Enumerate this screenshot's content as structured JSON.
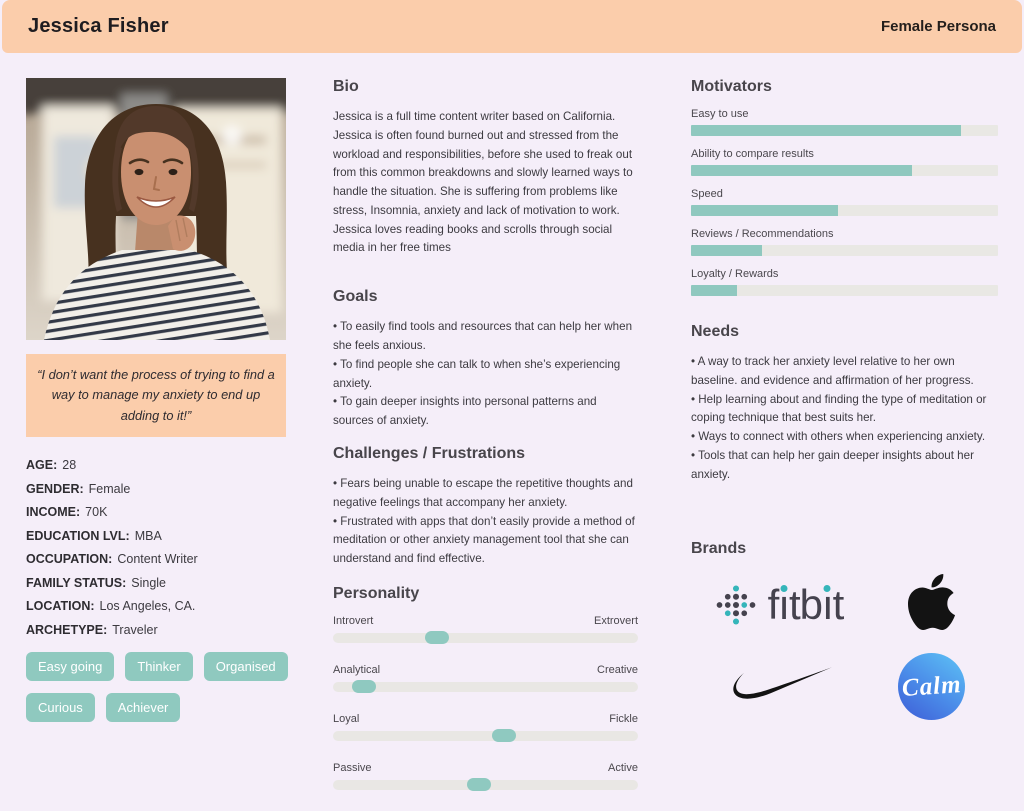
{
  "header": {
    "title": "Jessica Fisher",
    "persona_type": "Female Persona"
  },
  "profile": {
    "photo_label": "Smiling woman with long brown hair in striped shirt",
    "quote": "“I don’t want the process of trying to find a way to manage my anxiety to end up adding to it!”",
    "attributes": [
      {
        "label": "AGE:",
        "value": "28"
      },
      {
        "label": "GENDER:",
        "value": "Female"
      },
      {
        "label": "INCOME:",
        "value": "70K"
      },
      {
        "label": "EDUCATION LVL:",
        "value": "MBA"
      },
      {
        "label": "OCCUPATION:",
        "value": "Content Writer"
      },
      {
        "label": "FAMILY STATUS:",
        "value": "Single"
      },
      {
        "label": "LOCATION:",
        "value": "Los Angeles, CA."
      },
      {
        "label": "ARCHETYPE:",
        "value": "Traveler"
      }
    ],
    "traits": [
      "Easy going",
      "Thinker",
      "Organised",
      "Curious",
      "Achiever"
    ]
  },
  "bio": {
    "heading": "Bio",
    "text": "Jessica is a full time content writer based on California. Jessica is often found burned out and stressed from the workload and responsibilities, before she used to freak out from this common breakdowns and slowly learned ways to handle the situation. She is suffering from problems like stress, Insomnia, anxiety and lack of motivation to work. Jessica loves reading books and scrolls through social media in her free times"
  },
  "goals": {
    "heading": "Goals",
    "items": [
      "• To easily find tools and resources that can help her when she feels anxious.",
      "• To find people she can talk to when she’s experiencing anxiety.",
      "• To gain deeper insights into personal patterns and sources of anxiety."
    ]
  },
  "challenges": {
    "heading": "Challenges / Frustrations",
    "items": [
      "• Fears being unable to escape the repetitive thoughts and negative feelings that accompany her anxiety.",
      "• Frustrated with apps that don’t easily provide a method of meditation or other anxiety management tool that she can understand and find effective."
    ]
  },
  "personality": {
    "heading": "Personality",
    "sliders": [
      {
        "left": "Introvert",
        "right": "Extrovert",
        "value": 34
      },
      {
        "left": "Analytical",
        "right": "Creative",
        "value": 10
      },
      {
        "left": "Loyal",
        "right": "Fickle",
        "value": 56
      },
      {
        "left": "Passive",
        "right": "Active",
        "value": 48
      }
    ]
  },
  "motivators": {
    "heading": "Motivators",
    "bars": [
      {
        "label": "Easy to use",
        "value": 88
      },
      {
        "label": "Ability to compare results",
        "value": 72
      },
      {
        "label": "Speed",
        "value": 48
      },
      {
        "label": "Reviews / Recommendations",
        "value": 23
      },
      {
        "label": "Loyalty / Rewards",
        "value": 15
      }
    ]
  },
  "needs": {
    "heading": "Needs",
    "items": [
      "• A way to track her anxiety level relative to her own baseline. and evidence and affirmation of her progress.",
      "• Help learning about and finding the type of meditation or coping technique that best suits her.",
      "• Ways to connect with others when experiencing anxiety.",
      "• Tools that can help her gain deeper insights about her anxiety."
    ]
  },
  "brands": {
    "heading": "Brands",
    "fitbit": {
      "name": "fitbit",
      "parts": {
        "p0": "f",
        "i1": "ı",
        "p1": "tb",
        "i2": "ı",
        "p2": "t"
      }
    },
    "apple": {
      "name": "apple"
    },
    "nike": {
      "name": "nike"
    },
    "calm": {
      "name": "calm",
      "label": "Calm"
    }
  },
  "colors": {
    "page_bg": "#f5eef9",
    "peach": "#fbcdab",
    "accent_teal": "#8fc9c0",
    "track_gray": "#e9e7e4",
    "text": "#403d44",
    "fitbit_dot_teal": "#35b5ba",
    "calm_blue_top": "#5ec4f6",
    "calm_blue_bottom": "#3e5cd6"
  }
}
